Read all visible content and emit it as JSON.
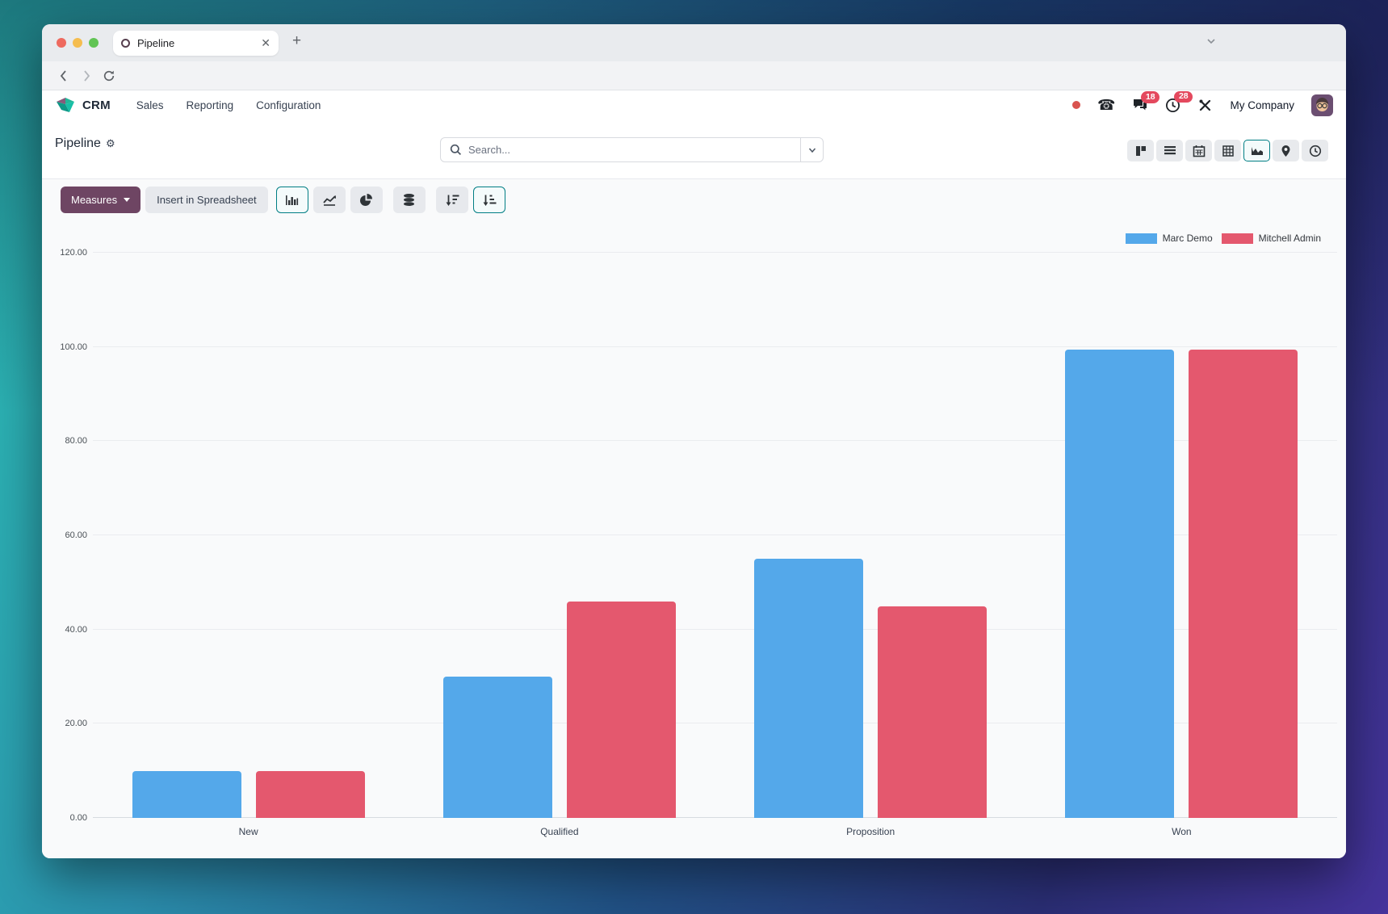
{
  "browser": {
    "tab_title": "Pipeline",
    "url": "mycompany.com/odoo"
  },
  "header": {
    "app_name": "CRM",
    "menus": [
      {
        "label": "Sales"
      },
      {
        "label": "Reporting"
      },
      {
        "label": "Configuration"
      }
    ],
    "chat_badge": "18",
    "activity_badge": "28",
    "company": "My Company"
  },
  "control_panel": {
    "title": "Pipeline",
    "search_placeholder": "Search...",
    "views": [
      {
        "name": "kanban",
        "active": false
      },
      {
        "name": "list",
        "active": false
      },
      {
        "name": "calendar",
        "active": false
      },
      {
        "name": "pivot",
        "active": false
      },
      {
        "name": "graph",
        "active": true
      },
      {
        "name": "map",
        "active": false
      },
      {
        "name": "activity",
        "active": false
      }
    ]
  },
  "toolbar": {
    "measures_label": "Measures",
    "insert_label": "Insert in Spreadsheet",
    "buttons": [
      {
        "name": "bar-chart",
        "active": true
      },
      {
        "name": "line-chart",
        "active": false
      },
      {
        "name": "pie-chart",
        "active": false
      },
      {
        "name": "stacked",
        "active": false
      },
      {
        "name": "sort-descending",
        "active": false
      },
      {
        "name": "sort-ascending",
        "active": true
      }
    ]
  },
  "colors": {
    "accent_teal": "#017E84",
    "primary_button": "#6E4563",
    "badge_red": "#E4495E",
    "bar_blue": "#54A8EA",
    "bar_red": "#E4586E"
  },
  "chart_data": {
    "type": "bar",
    "title": "",
    "xlabel": "",
    "ylabel": "",
    "categories": [
      "New",
      "Qualified",
      "Proposition",
      "Won"
    ],
    "series": [
      {
        "name": "Marc Demo",
        "color": "#54A8EA",
        "values": [
          10,
          30,
          55,
          99.5
        ]
      },
      {
        "name": "Mitchell Admin",
        "color": "#E4586E",
        "values": [
          10,
          46,
          45,
          99.5
        ]
      }
    ],
    "ylim": [
      0,
      120
    ],
    "yticks": [
      0,
      20,
      40,
      60,
      80,
      100,
      120
    ],
    "ytick_labels": [
      "0.00",
      "20.00",
      "40.00",
      "60.00",
      "80.00",
      "100.00",
      "120.00"
    ],
    "grid": true,
    "legend_position": "top-right"
  }
}
